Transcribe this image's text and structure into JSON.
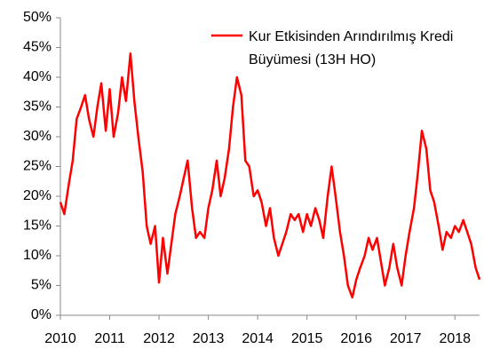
{
  "chart_data": {
    "type": "line",
    "xlim": [
      2010,
      2018.5
    ],
    "xticks": [
      2010,
      2011,
      2012,
      2013,
      2014,
      2015,
      2016,
      2017,
      2018
    ],
    "ylim": [
      0,
      50
    ],
    "yticks": [
      {
        "value": 0,
        "label": "0%"
      },
      {
        "value": 5,
        "label": "5%"
      },
      {
        "value": 10,
        "label": "10%"
      },
      {
        "value": 15,
        "label": "15%"
      },
      {
        "value": 20,
        "label": "20%"
      },
      {
        "value": 25,
        "label": "25%"
      },
      {
        "value": 30,
        "label": "30%"
      },
      {
        "value": 35,
        "label": "35%"
      },
      {
        "value": 40,
        "label": "40%"
      },
      {
        "value": 45,
        "label": "45%"
      },
      {
        "value": 50,
        "label": "50%"
      }
    ],
    "x": [
      2010,
      2010.08,
      2010.17,
      2010.25,
      2010.33,
      2010.42,
      2010.5,
      2010.58,
      2010.67,
      2010.75,
      2010.83,
      2010.92,
      2011,
      2011.08,
      2011.17,
      2011.25,
      2011.33,
      2011.42,
      2011.5,
      2011.58,
      2011.67,
      2011.75,
      2011.83,
      2011.92,
      2012,
      2012.08,
      2012.17,
      2012.25,
      2012.33,
      2012.42,
      2012.5,
      2012.58,
      2012.67,
      2012.75,
      2012.83,
      2012.92,
      2013,
      2013.08,
      2013.17,
      2013.25,
      2013.33,
      2013.42,
      2013.5,
      2013.58,
      2013.67,
      2013.75,
      2013.83,
      2013.92,
      2014,
      2014.08,
      2014.17,
      2014.25,
      2014.33,
      2014.42,
      2014.5,
      2014.58,
      2014.67,
      2014.75,
      2014.83,
      2014.92,
      2015,
      2015.08,
      2015.17,
      2015.25,
      2015.33,
      2015.42,
      2015.5,
      2015.58,
      2015.67,
      2015.75,
      2015.83,
      2015.92,
      2016,
      2016.08,
      2016.17,
      2016.25,
      2016.33,
      2016.42,
      2016.5,
      2016.58,
      2016.67,
      2016.75,
      2016.83,
      2016.92,
      2017,
      2017.08,
      2017.17,
      2017.25,
      2017.33,
      2017.42,
      2017.5,
      2017.58,
      2017.67,
      2017.75,
      2017.83,
      2017.92,
      2018,
      2018.08,
      2018.17,
      2018.25,
      2018.33,
      2018.42,
      2018.5
    ],
    "series": [
      {
        "name": "Kur Etkisinden Arındırılmış Kredi Büyümesi (13H HO)",
        "color": "#ff0000",
        "values": [
          19,
          17,
          22,
          26,
          33,
          35,
          37,
          33,
          30,
          35,
          39,
          31,
          38,
          30,
          34,
          40,
          36,
          44,
          36,
          30,
          24,
          15,
          12,
          15,
          5.5,
          13,
          7,
          12,
          17,
          20,
          23,
          26,
          18,
          13,
          14,
          13,
          18,
          21,
          26,
          20,
          23,
          28,
          35,
          40,
          37,
          26,
          25,
          20,
          21,
          19,
          15,
          18,
          13,
          10,
          12,
          14,
          17,
          16,
          17,
          14,
          17,
          15,
          18,
          16,
          13,
          20,
          25,
          20,
          14,
          10,
          5,
          3,
          6,
          8,
          10,
          13,
          11,
          13,
          9,
          5,
          8,
          12,
          8,
          5,
          10,
          14,
          18,
          24,
          31,
          28,
          21,
          19,
          15,
          11,
          14,
          13,
          15,
          14,
          16,
          14,
          12,
          8,
          6
        ]
      }
    ]
  }
}
